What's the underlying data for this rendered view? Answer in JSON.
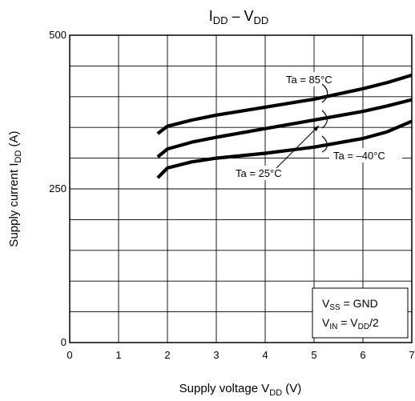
{
  "chart_data": {
    "type": "line",
    "title": {
      "main": "I",
      "main_sub": "DD",
      "dash": " – V",
      "tail_sub": "DD"
    },
    "xlabel": {
      "text": "Supply voltage   V",
      "sub": "DD",
      "unit": "   (V)"
    },
    "ylabel": {
      "text": "Supply current   I",
      "sub": "DD",
      "unit": "   (A)"
    },
    "xlim": [
      0,
      7
    ],
    "ylim": [
      0,
      500
    ],
    "x_ticks": [
      0,
      1,
      2,
      3,
      4,
      5,
      6,
      7
    ],
    "y_ticks": [
      0,
      250,
      500
    ],
    "grid": {
      "x_step": 1,
      "y_step": 50
    },
    "series": [
      {
        "name": "Ta = 85°C",
        "x": [
          1.8,
          2.0,
          2.5,
          3.0,
          4.0,
          5.0,
          6.0,
          6.5,
          7.0
        ],
        "y": [
          340,
          352,
          362,
          370,
          383,
          396,
          413,
          423,
          435
        ]
      },
      {
        "name": "Ta = 25°C",
        "x": [
          1.8,
          2.0,
          2.5,
          3.0,
          4.0,
          5.0,
          6.0,
          6.5,
          7.0
        ],
        "y": [
          302,
          315,
          326,
          334,
          348,
          362,
          376,
          385,
          395
        ]
      },
      {
        "name": "Ta = −40°C",
        "x": [
          1.8,
          2.0,
          2.5,
          3.0,
          4.0,
          5.0,
          6.0,
          6.5,
          7.0
        ],
        "y": [
          268,
          284,
          294,
          300,
          308,
          318,
          332,
          343,
          360
        ]
      }
    ],
    "annotations": {
      "t85": "Ta = 85°C",
      "t25": "Ta = 25°C",
      "tm40": "Ta = –40°C",
      "vss": {
        "main": "V",
        "sub": "SS",
        "rest": " = GND"
      },
      "vin": {
        "main": "V",
        "sub": "IN",
        "mid": " = V",
        "sub2": "DD",
        "rest": "/2"
      }
    }
  }
}
